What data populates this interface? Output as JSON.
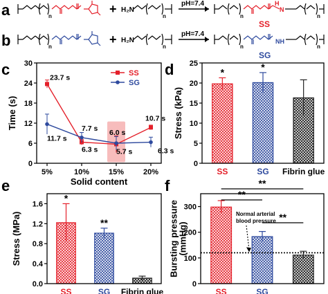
{
  "panels": {
    "a": {
      "letter": "a",
      "condition": "pH=7.4",
      "sub_n1": "n",
      "sub_n2": "n",
      "sub_n3": "n",
      "sub_n4": "n",
      "amine": "H₂N",
      "amide_h": "H",
      "amide_n": "N",
      "product": "SS",
      "product_color": "#e4202a"
    },
    "b": {
      "letter": "b",
      "condition": "pH=7.4",
      "sub_n1": "n",
      "sub_n2": "n",
      "sub_n3": "n",
      "sub_n4": "n",
      "amine": "H₂N",
      "amide": "NH",
      "product": "SG",
      "product_color": "#2e4a9e"
    },
    "c": {
      "letter": "c"
    },
    "d": {
      "letter": "d"
    },
    "e": {
      "letter": "e"
    },
    "f": {
      "letter": "f",
      "annotation_line1": "Normal arterial",
      "annotation_line2": "blood pressure"
    }
  },
  "colors": {
    "ss": "#e4202a",
    "sg": "#2e4a9e",
    "fibrin": "#222222",
    "highlight": "#f4a6a6"
  },
  "chart_data": [
    {
      "panel": "c",
      "type": "line",
      "xlabel": "Solid content",
      "ylabel": "Time (s)",
      "categories": [
        "5%",
        "10%",
        "15%",
        "20%"
      ],
      "ylim": [
        0,
        30
      ],
      "yticks": [
        "0",
        "6",
        "12",
        "18",
        "24",
        "30"
      ],
      "legend": "top-right",
      "series": [
        {
          "name": "SS",
          "values": [
            23.7,
            6.3,
            5.7,
            10.7
          ],
          "errors": [
            1.2,
            0.8,
            2.5,
            0.7
          ],
          "labels": [
            "23.7 s",
            "6.3 s",
            "5.7 s",
            "10.7 s"
          ]
        },
        {
          "name": "SG",
          "values": [
            11.7,
            7.7,
            6.0,
            6.3
          ],
          "errors": [
            3.0,
            1.5,
            2.0,
            1.5
          ],
          "labels": [
            "11.7 s",
            "7.7 s",
            "6.0 s",
            "6.3 s"
          ]
        }
      ]
    },
    {
      "panel": "d",
      "type": "bar",
      "ylabel": "Stress (kPa)",
      "categories": [
        "SS",
        "SG",
        "Fibrin glue"
      ],
      "values": [
        19.8,
        20.1,
        16.3
      ],
      "errors": [
        1.5,
        2.5,
        4.5
      ],
      "ylim": [
        0,
        25
      ],
      "yticks": [
        "0",
        "5",
        "10",
        "15",
        "20",
        "25"
      ],
      "significance": [
        "*",
        "*",
        ""
      ]
    },
    {
      "panel": "e",
      "type": "bar",
      "ylabel": "Stress (MPa)",
      "categories": [
        "SS",
        "SG",
        "Fibrin glue"
      ],
      "values": [
        1.22,
        1.01,
        0.11
      ],
      "errors": [
        0.38,
        0.1,
        0.04
      ],
      "ylim": [
        0,
        1.8
      ],
      "yticks": [
        "0.0",
        "0.4",
        "0.8",
        "1.2",
        "1.6"
      ],
      "significance": [
        "*",
        "**",
        ""
      ]
    },
    {
      "panel": "f",
      "type": "bar",
      "ylabel": "Bursting pressure\n(mmHg)",
      "categories": [
        "SS",
        "SG",
        ""
      ],
      "values": [
        298,
        183,
        111
      ],
      "errors": [
        25,
        20,
        15
      ],
      "ylim": [
        0,
        350
      ],
      "yticks": [
        "0",
        "100",
        "200",
        "300"
      ],
      "reference_line": 120,
      "significance_brackets": [
        {
          "from": 0,
          "to": 1,
          "label": "**"
        },
        {
          "from": 0,
          "to": 2,
          "label": "**"
        },
        {
          "from": 1,
          "to": 2,
          "label": "**"
        }
      ]
    }
  ]
}
